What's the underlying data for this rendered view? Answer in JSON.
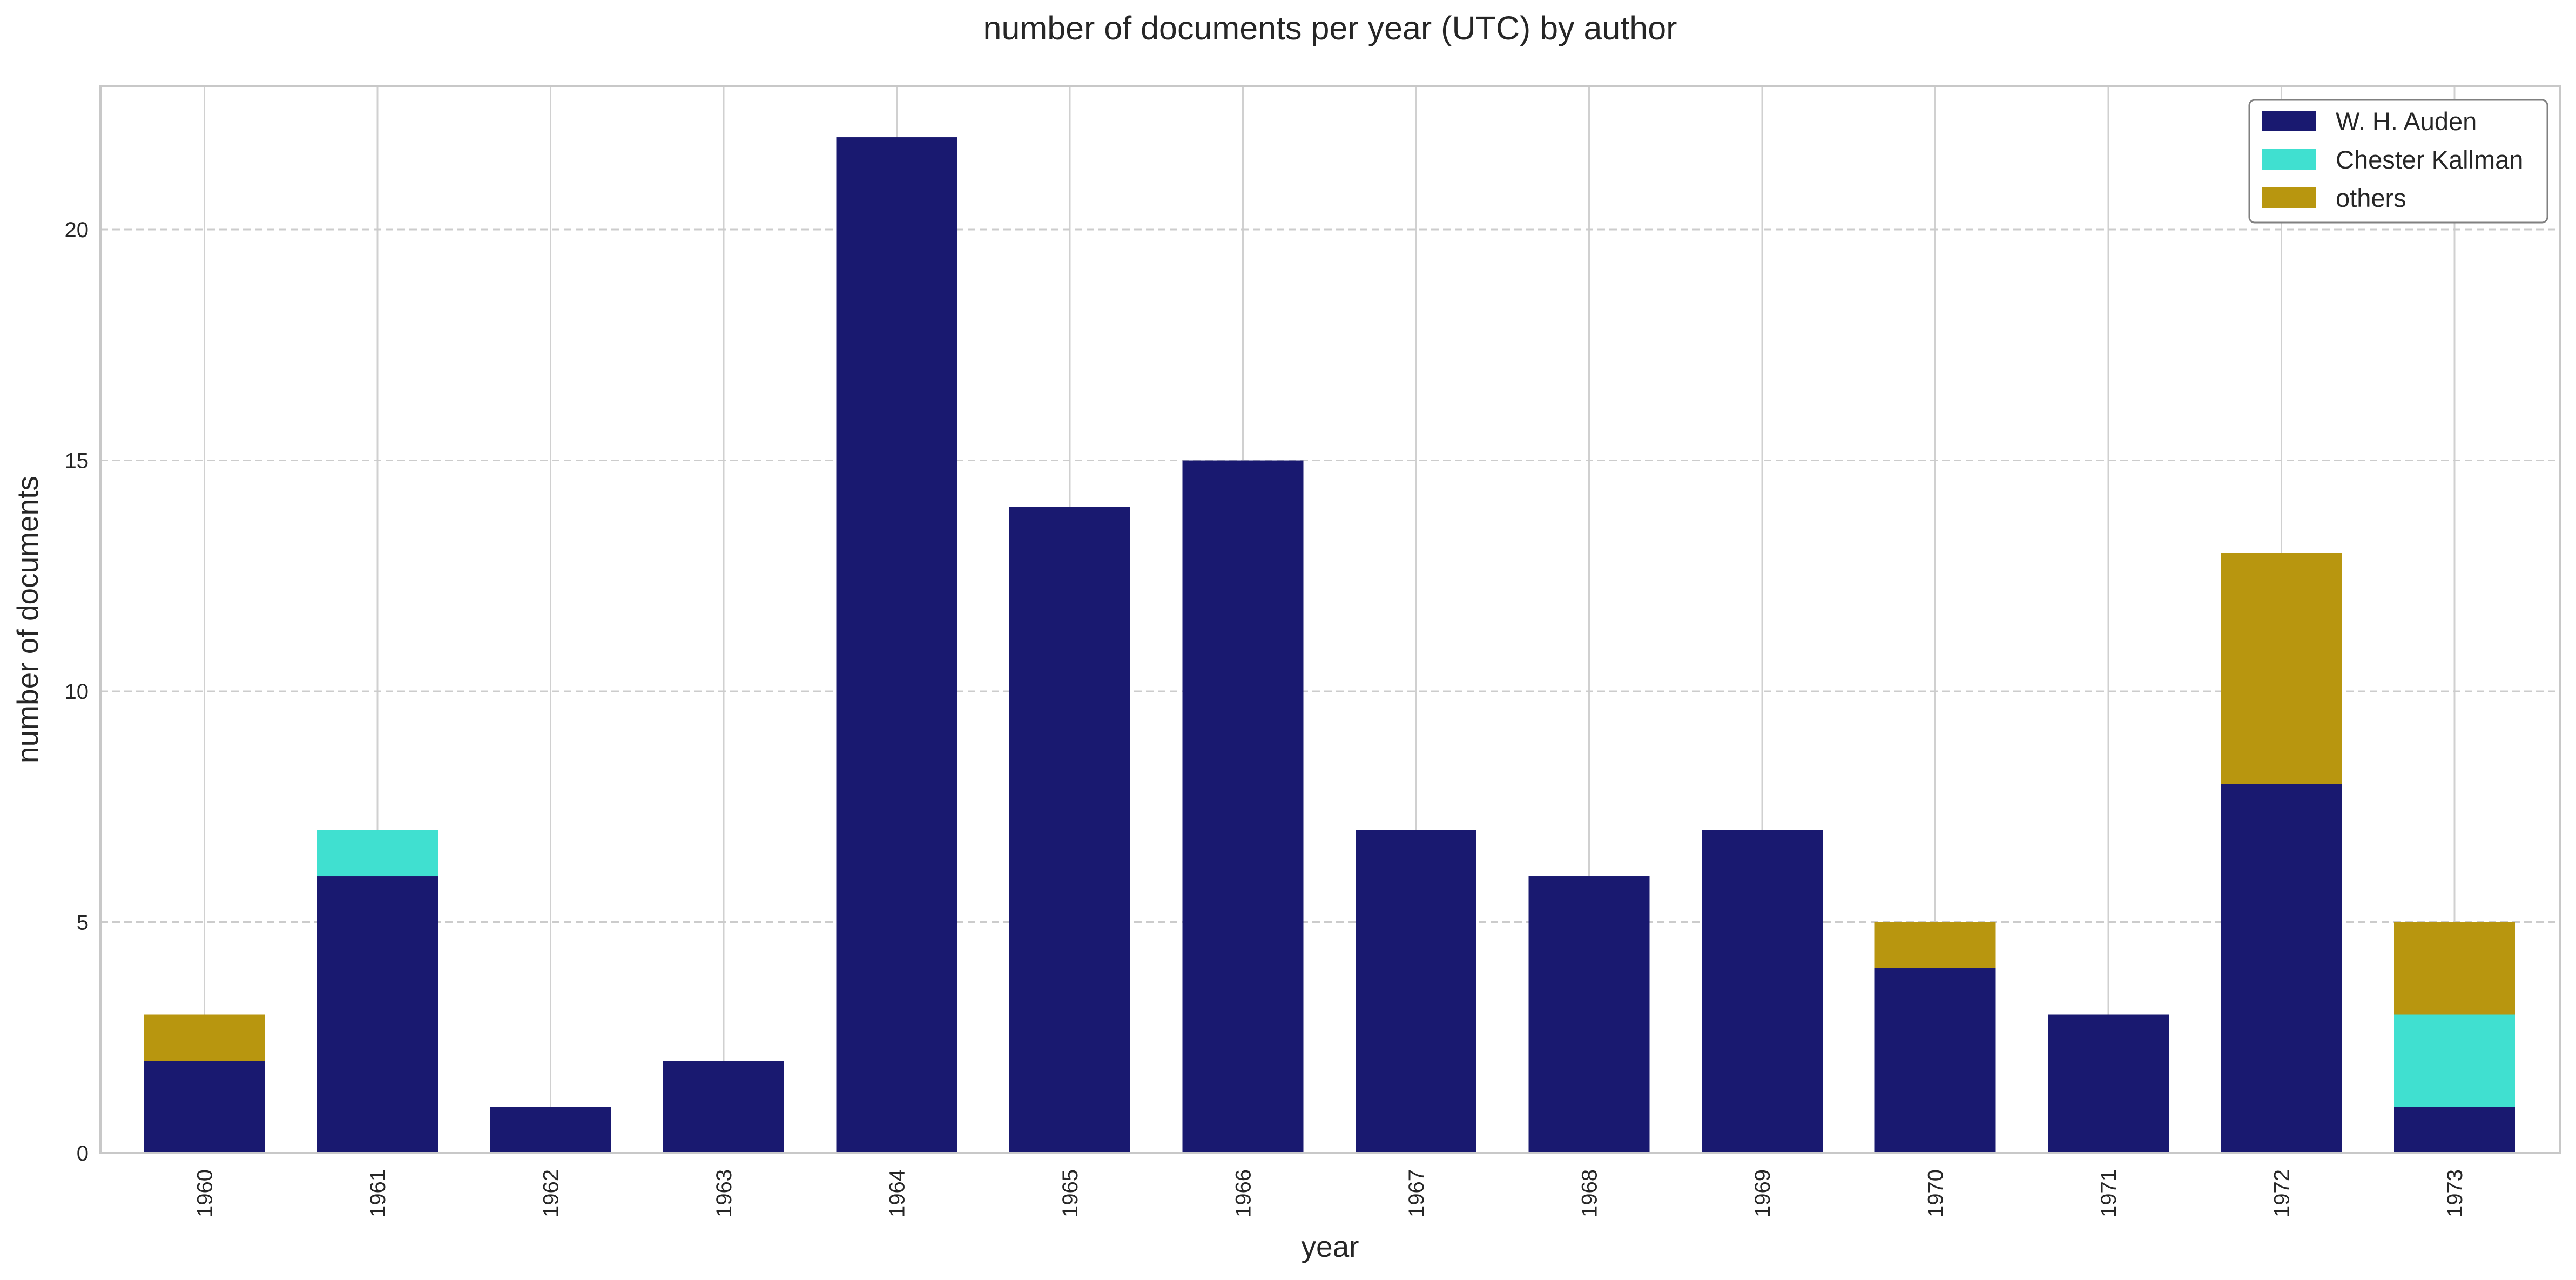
{
  "chart_data": {
    "type": "bar",
    "stacked": true,
    "title": "number of documents per year (UTC) by author",
    "xlabel": "year",
    "ylabel": "number of documents",
    "categories": [
      "1960",
      "1961",
      "1962",
      "1963",
      "1964",
      "1965",
      "1966",
      "1967",
      "1968",
      "1969",
      "1970",
      "1971",
      "1972",
      "1973"
    ],
    "series": [
      {
        "name": "W. H. Auden",
        "color": "#191970",
        "values": [
          2,
          6,
          1,
          2,
          22,
          14,
          15,
          7,
          6,
          7,
          4,
          3,
          8,
          1
        ]
      },
      {
        "name": "Chester Kallman",
        "color": "#40E0D0",
        "values": [
          0,
          1,
          0,
          0,
          0,
          0,
          0,
          0,
          0,
          0,
          0,
          0,
          0,
          2
        ]
      },
      {
        "name": "others",
        "color": "#B8960F",
        "values": [
          1,
          0,
          0,
          0,
          0,
          0,
          0,
          0,
          0,
          0,
          1,
          0,
          5,
          2
        ]
      }
    ],
    "ylim": [
      0,
      23.1
    ],
    "yticks": [
      0,
      5,
      10,
      15,
      20
    ],
    "grid": true,
    "legend_position": "top-right"
  }
}
